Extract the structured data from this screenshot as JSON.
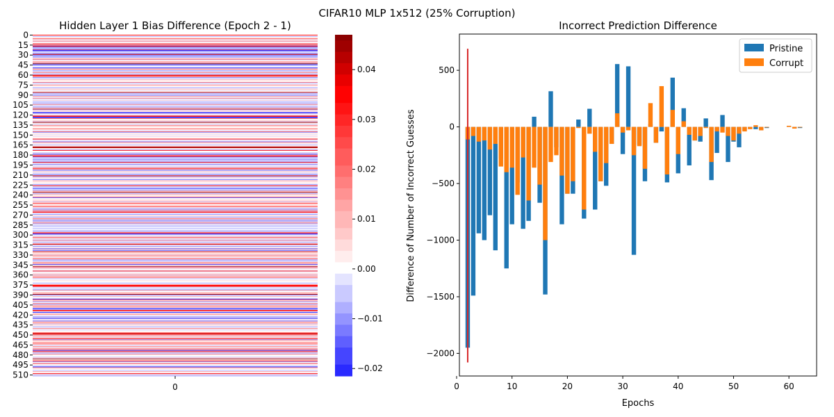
{
  "suptitle": "CIFAR10 MLP 1x512 (25% Corruption)",
  "colors": {
    "pristine": "#1f77b4",
    "corrupt": "#ff7f0e",
    "marker": "#d62728",
    "heat_pos_max": "#8b0000",
    "heat_neg_max": "#1a1aff"
  },
  "chart_data": [
    {
      "type": "heatmap",
      "title": "Hidden Layer 1 Bias Difference (Epoch 2 - 1)",
      "xlabel": "",
      "ylabel": "",
      "x_ticks": [
        "0"
      ],
      "y_ticks": [
        "0",
        "15",
        "30",
        "45",
        "60",
        "75",
        "90",
        "105",
        "120",
        "135",
        "150",
        "165",
        "180",
        "195",
        "210",
        "225",
        "240",
        "255",
        "270",
        "285",
        "300",
        "315",
        "330",
        "345",
        "360",
        "375",
        "390",
        "405",
        "420",
        "435",
        "450",
        "465",
        "480",
        "495",
        "510"
      ],
      "rows": 512,
      "columns": 1,
      "colorbar": {
        "ticks": [
          "0.04",
          "0.03",
          "0.02",
          "0.01",
          "0.00",
          "−0.01",
          "−0.02"
        ],
        "tick_values": [
          0.04,
          0.03,
          0.02,
          0.01,
          0.0,
          -0.01,
          -0.02
        ],
        "range": [
          -0.0215,
          0.047
        ],
        "colormap": "seismic"
      }
    },
    {
      "type": "bar",
      "title": "Incorrect Prediction Difference",
      "xlabel": "Epochs",
      "ylabel": "Difference of Number of Incorrect Guesses",
      "xlim": [
        0.5,
        65
      ],
      "ylim": [
        -2200,
        820
      ],
      "x_ticks": [
        0,
        10,
        20,
        30,
        40,
        50,
        60
      ],
      "y_ticks": [
        -2000,
        -1500,
        -1000,
        -500,
        0,
        500
      ],
      "y_tick_labels": [
        "−2000",
        "−1500",
        "−1000",
        "−500",
        "0",
        "500"
      ],
      "legend": {
        "position": "top-right",
        "entries": [
          "Pristine",
          "Corrupt"
        ]
      },
      "marker_line": {
        "x": 2,
        "y_range": [
          -2080,
          690
        ]
      },
      "x": [
        2,
        3,
        4,
        5,
        6,
        7,
        8,
        9,
        10,
        11,
        12,
        13,
        14,
        15,
        16,
        17,
        18,
        19,
        20,
        21,
        22,
        23,
        24,
        25,
        26,
        27,
        28,
        29,
        30,
        31,
        32,
        33,
        34,
        35,
        36,
        37,
        38,
        39,
        40,
        41,
        42,
        43,
        44,
        45,
        46,
        47,
        48,
        49,
        50,
        51,
        52,
        53,
        54,
        55,
        56,
        57,
        58,
        59,
        60,
        61,
        62
      ],
      "series": [
        {
          "name": "Pristine",
          "values": [
            -1950,
            -1490,
            -940,
            -1000,
            -780,
            -1090,
            -280,
            -1250,
            -860,
            -490,
            -900,
            -830,
            90,
            -670,
            -1480,
            315,
            -180,
            -860,
            -590,
            -590,
            65,
            -810,
            160,
            -730,
            -480,
            -520,
            -150,
            555,
            -240,
            535,
            -1130,
            -160,
            -480,
            25,
            -140,
            -40,
            -490,
            435,
            -410,
            165,
            -340,
            -120,
            -130,
            75,
            -470,
            -230,
            105,
            -310,
            -130,
            -180,
            -30,
            -10,
            -20,
            -30,
            -10,
            0,
            0,
            0,
            5,
            -10,
            -10
          ]
        },
        {
          "name": "Corrupt",
          "values": [
            -110,
            -80,
            -130,
            -120,
            -200,
            -150,
            -350,
            -400,
            -360,
            -600,
            -270,
            -650,
            -360,
            -510,
            -1000,
            -310,
            -250,
            -430,
            -590,
            -480,
            -10,
            -730,
            -60,
            -220,
            -480,
            -320,
            -150,
            120,
            -50,
            -30,
            -250,
            -170,
            -370,
            210,
            -140,
            360,
            -420,
            150,
            -240,
            50,
            -70,
            -120,
            -80,
            -10,
            -310,
            -40,
            -50,
            -80,
            -120,
            -60,
            -40,
            -20,
            15,
            -30,
            -5,
            0,
            0,
            0,
            10,
            -15,
            -5
          ]
        }
      ]
    }
  ]
}
